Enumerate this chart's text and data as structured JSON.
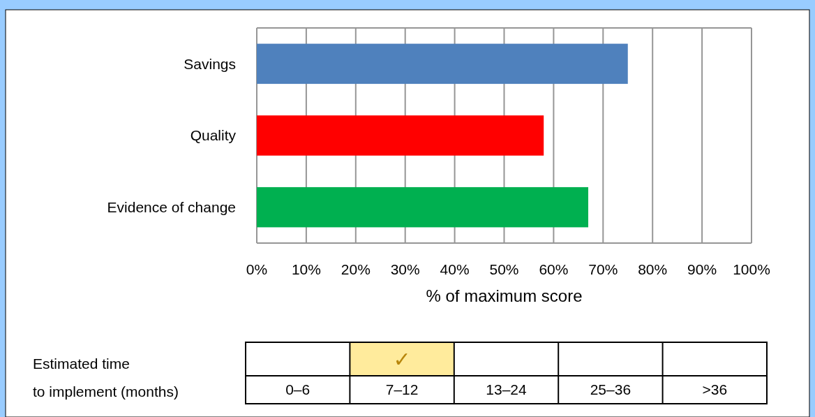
{
  "chart_data": [
    {
      "type": "bar",
      "orientation": "horizontal",
      "categories": [
        "Savings",
        "Quality",
        "Evidence of change"
      ],
      "values": [
        75,
        58,
        67
      ],
      "colors": [
        "#4f81bd",
        "#ff0000",
        "#00b050"
      ],
      "xlabel": "% of maximum score",
      "xlim": [
        0,
        100
      ],
      "xticks": [
        {
          "value": 0,
          "label": "0%"
        },
        {
          "value": 10,
          "label": "10%"
        },
        {
          "value": 20,
          "label": "20%"
        },
        {
          "value": 30,
          "label": "30%"
        },
        {
          "value": 40,
          "label": "40%"
        },
        {
          "value": 50,
          "label": "50%"
        },
        {
          "value": 60,
          "label": "60%"
        },
        {
          "value": 70,
          "label": "70%"
        },
        {
          "value": 80,
          "label": "80%"
        },
        {
          "value": 90,
          "label": "90%"
        },
        {
          "value": 100,
          "label": "100%"
        }
      ],
      "grid": "x"
    },
    {
      "type": "other",
      "title": "Estimated time\nto implement (months)",
      "categories": [
        "0–6",
        "7–12",
        "13–24",
        "25–36",
        ">36"
      ],
      "annotations": [
        {
          "text": "✓",
          "x": "7–12"
        }
      ]
    }
  ]
}
